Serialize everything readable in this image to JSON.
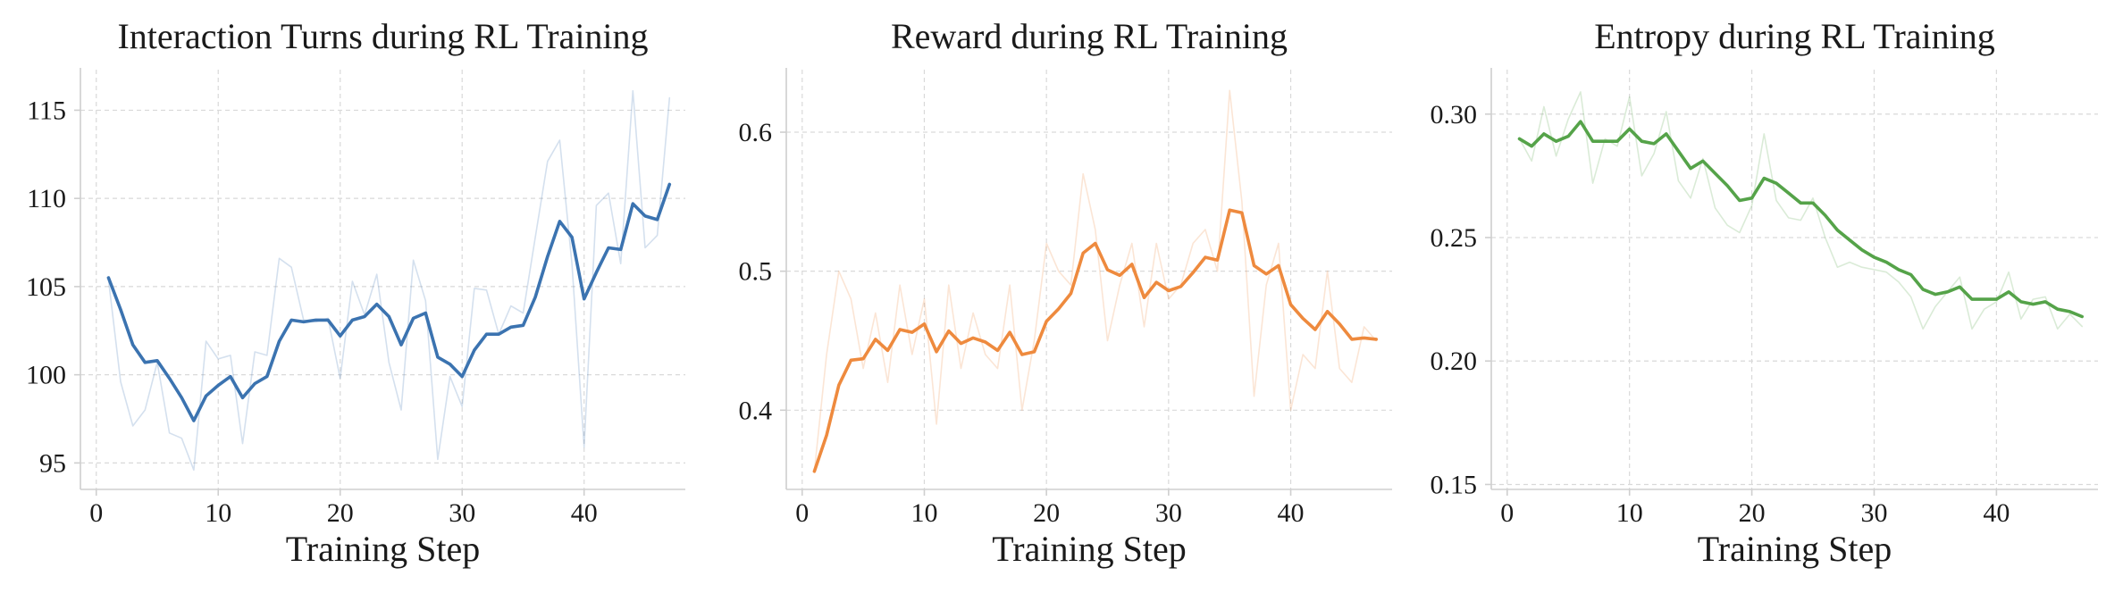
{
  "chart_data": [
    {
      "type": "line",
      "title": "Interaction Turns during RL Training",
      "xlabel": "Training Step",
      "ylabel": "",
      "xlim": [
        -1.3,
        48.3
      ],
      "ylim": [
        93.5,
        117.3
      ],
      "xticks": [
        0,
        10,
        20,
        30,
        40
      ],
      "yticks": [
        95,
        100,
        105,
        110,
        115
      ],
      "grid": true,
      "color": "#3b73b0",
      "x": [
        1,
        2,
        3,
        4,
        5,
        6,
        7,
        8,
        9,
        10,
        11,
        12,
        13,
        14,
        15,
        16,
        17,
        18,
        19,
        20,
        21,
        22,
        23,
        24,
        25,
        26,
        27,
        28,
        29,
        30,
        31,
        32,
        33,
        34,
        35,
        36,
        37,
        38,
        39,
        40,
        41,
        42,
        43,
        44,
        45,
        46,
        47
      ],
      "series": [
        {
          "role": "raw",
          "values": [
            105.4,
            99.6,
            97.1,
            98.0,
            100.7,
            96.7,
            96.4,
            94.6,
            101.9,
            100.9,
            101.1,
            96.1,
            101.3,
            101.1,
            106.6,
            106.1,
            103.1,
            103.0,
            103.2,
            99.8,
            105.3,
            103.4,
            105.7,
            100.7,
            98.0,
            106.5,
            104.2,
            95.2,
            99.9,
            98.2,
            104.9,
            104.8,
            102.3,
            103.9,
            103.5,
            107.8,
            112.1,
            113.3,
            106.3,
            95.9,
            109.6,
            110.3,
            106.3,
            116.1,
            107.2,
            107.9,
            115.7
          ]
        },
        {
          "role": "smoothed",
          "values": [
            105.5,
            103.7,
            101.7,
            100.7,
            100.8,
            99.8,
            98.7,
            97.4,
            98.8,
            99.4,
            99.9,
            98.7,
            99.5,
            99.9,
            101.9,
            103.1,
            103.0,
            103.1,
            103.1,
            102.2,
            103.1,
            103.3,
            104.0,
            103.3,
            101.7,
            103.2,
            103.5,
            101.0,
            100.6,
            99.9,
            101.4,
            102.3,
            102.3,
            102.7,
            102.8,
            104.4,
            106.7,
            108.7,
            107.8,
            104.3,
            105.8,
            107.2,
            107.1,
            109.7,
            109.0,
            108.8,
            110.8
          ]
        }
      ]
    },
    {
      "type": "line",
      "title": "Reward during RL Training",
      "xlabel": "Training Step",
      "ylabel": "",
      "xlim": [
        -1.3,
        48.3
      ],
      "ylim": [
        0.343,
        0.645
      ],
      "xticks": [
        0,
        10,
        20,
        30,
        40
      ],
      "yticks": [
        0.4,
        0.5,
        0.6
      ],
      "grid": true,
      "color": "#ee8a3e",
      "x": [
        1,
        2,
        3,
        4,
        5,
        6,
        7,
        8,
        9,
        10,
        11,
        12,
        13,
        14,
        15,
        16,
        17,
        18,
        19,
        20,
        21,
        22,
        23,
        24,
        25,
        26,
        27,
        28,
        29,
        30,
        31,
        32,
        33,
        34,
        35,
        36,
        37,
        38,
        39,
        40,
        41,
        42,
        43,
        44,
        45,
        46,
        47
      ],
      "series": [
        {
          "role": "raw",
          "values": [
            0.356,
            0.44,
            0.5,
            0.48,
            0.43,
            0.47,
            0.42,
            0.49,
            0.44,
            0.48,
            0.39,
            0.49,
            0.43,
            0.47,
            0.44,
            0.43,
            0.49,
            0.4,
            0.45,
            0.52,
            0.5,
            0.49,
            0.57,
            0.53,
            0.45,
            0.49,
            0.52,
            0.46,
            0.52,
            0.48,
            0.49,
            0.52,
            0.53,
            0.5,
            0.63,
            0.55,
            0.41,
            0.49,
            0.52,
            0.4,
            0.44,
            0.43,
            0.5,
            0.43,
            0.42,
            0.46,
            0.45
          ]
        },
        {
          "role": "smoothed",
          "values": [
            0.356,
            0.382,
            0.418,
            0.436,
            0.437,
            0.451,
            0.443,
            0.458,
            0.456,
            0.462,
            0.442,
            0.457,
            0.448,
            0.452,
            0.449,
            0.443,
            0.456,
            0.44,
            0.442,
            0.464,
            0.473,
            0.484,
            0.513,
            0.52,
            0.501,
            0.497,
            0.505,
            0.481,
            0.492,
            0.486,
            0.489,
            0.499,
            0.51,
            0.508,
            0.544,
            0.542,
            0.504,
            0.498,
            0.504,
            0.476,
            0.466,
            0.458,
            0.471,
            0.462,
            0.451,
            0.452,
            0.451
          ]
        }
      ]
    },
    {
      "type": "line",
      "title": "Entropy during RL Training",
      "xlabel": "Training Step",
      "ylabel": "",
      "xlim": [
        -1.3,
        48.3
      ],
      "ylim": [
        0.148,
        0.318
      ],
      "xticks": [
        0,
        10,
        20,
        30,
        40
      ],
      "yticks": [
        0.15,
        0.2,
        0.25,
        0.3
      ],
      "grid": true,
      "color": "#55a349",
      "x": [
        1,
        2,
        3,
        4,
        5,
        6,
        7,
        8,
        9,
        10,
        11,
        12,
        13,
        14,
        15,
        16,
        17,
        18,
        19,
        20,
        21,
        22,
        23,
        24,
        25,
        26,
        27,
        28,
        29,
        30,
        31,
        32,
        33,
        34,
        35,
        36,
        37,
        38,
        39,
        40,
        41,
        42,
        43,
        44,
        45,
        46,
        47
      ],
      "series": [
        {
          "role": "raw",
          "values": [
            0.29,
            0.281,
            0.303,
            0.283,
            0.298,
            0.309,
            0.272,
            0.29,
            0.287,
            0.307,
            0.275,
            0.284,
            0.301,
            0.273,
            0.266,
            0.282,
            0.262,
            0.255,
            0.252,
            0.263,
            0.292,
            0.265,
            0.258,
            0.257,
            0.266,
            0.25,
            0.238,
            0.24,
            0.238,
            0.237,
            0.236,
            0.232,
            0.226,
            0.213,
            0.222,
            0.228,
            0.234,
            0.213,
            0.221,
            0.224,
            0.236,
            0.217,
            0.225,
            0.226,
            0.213,
            0.219,
            0.214
          ]
        },
        {
          "role": "smoothed",
          "values": [
            0.29,
            0.287,
            0.292,
            0.289,
            0.291,
            0.297,
            0.289,
            0.289,
            0.289,
            0.294,
            0.289,
            0.288,
            0.292,
            0.285,
            0.278,
            0.281,
            0.276,
            0.271,
            0.265,
            0.266,
            0.274,
            0.272,
            0.268,
            0.264,
            0.264,
            0.259,
            0.253,
            0.249,
            0.245,
            0.242,
            0.24,
            0.237,
            0.235,
            0.229,
            0.227,
            0.228,
            0.23,
            0.225,
            0.225,
            0.225,
            0.228,
            0.224,
            0.223,
            0.224,
            0.221,
            0.22,
            0.218
          ]
        }
      ]
    }
  ]
}
